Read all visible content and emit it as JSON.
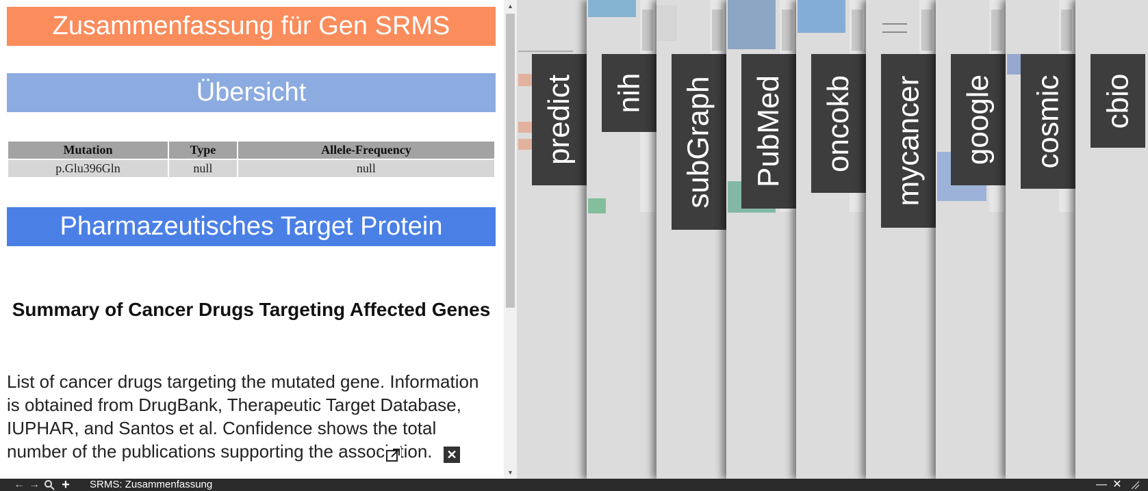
{
  "doc": {
    "title": "Zusammenfassung für Gen SRMS",
    "overview": "Übersicht",
    "table": {
      "headers": [
        "Mutation",
        "Type",
        "Allele-Frequency"
      ],
      "rows": [
        [
          "p.Glu396Gln",
          "null",
          "null"
        ]
      ]
    },
    "targets_banner": "Pharmazeutisches Target Protein",
    "section_heading": "Summary of Cancer Drugs Targeting Affected Genes",
    "section_desc": "List of cancer drugs targeting the mutated gene. Information is obtained from DrugBank, Therapeutic Target Database, IUPHAR, and Santos et al. Confidence shows the total number of the publications supporting the association."
  },
  "tabs": [
    "predict",
    "nih",
    "subGraph",
    "PubMed",
    "oncokb",
    "mycancer",
    "google",
    "cosmic",
    "cbio"
  ],
  "status_bar": {
    "title": "SRMS: Zusammenfassung",
    "icons": [
      "back-icon",
      "forward-icon",
      "search-icon",
      "plus-icon",
      "minimize-icon",
      "close-icon",
      "resize-grip-icon"
    ]
  },
  "colors": {
    "title_banner": "#fb8c5b",
    "overview_banner": "#8cabe0",
    "targets_banner": "#4a80e6",
    "tab_label_bg": "#3d3d3d",
    "status_bar_bg": "#2b2b2b"
  }
}
